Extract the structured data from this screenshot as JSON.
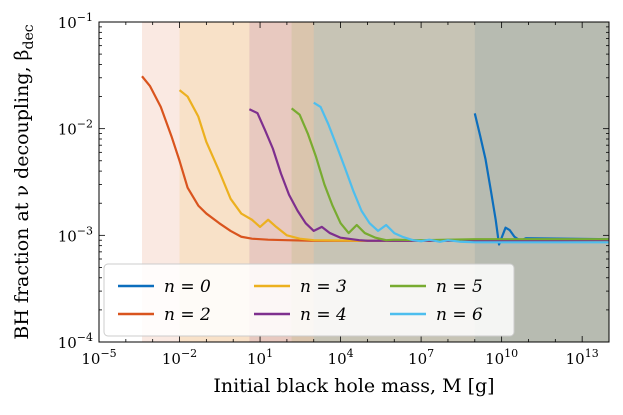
{
  "chart_data": {
    "type": "line",
    "title": "",
    "xlabel": "Initial black hole mass, M [g]",
    "ylabel": "BH fraction at ν decoupling, β_dec",
    "xscale": "log",
    "yscale": "log",
    "xlim": [
      1e-05,
      100000000000000.0
    ],
    "ylim": [
      0.0001,
      0.1
    ],
    "x_ticks": [
      {
        "value": 1e-05,
        "base": "10",
        "exp": "−5"
      },
      {
        "value": 0.01,
        "base": "10",
        "exp": "−2"
      },
      {
        "value": 10.0,
        "base": "10",
        "exp": "1"
      },
      {
        "value": 10000.0,
        "base": "10",
        "exp": "4"
      },
      {
        "value": 10000000.0,
        "base": "10",
        "exp": "7"
      },
      {
        "value": 10000000000.0,
        "base": "10",
        "exp": "10"
      },
      {
        "value": 10000000000000.0,
        "base": "10",
        "exp": "13"
      }
    ],
    "y_ticks": [
      {
        "value": 0.0001,
        "base": "10",
        "exp": "−4"
      },
      {
        "value": 0.001,
        "base": "10",
        "exp": "−3"
      },
      {
        "value": 0.01,
        "base": "10",
        "exp": "−2"
      },
      {
        "value": 0.1,
        "base": "10",
        "exp": "−1"
      }
    ],
    "legend_position": "lower-left",
    "series": [
      {
        "name": "n = 0",
        "color": "#0c6ebd",
        "shade_from_x": 1000000000.0,
        "points": [
          [
            1000000000.0,
            0.0139
          ],
          [
            1600000000.0,
            0.0085
          ],
          [
            2500000000.0,
            0.0052
          ],
          [
            4000000000.0,
            0.0026
          ],
          [
            6000000000.0,
            0.0014
          ],
          [
            8000000000.0,
            0.00082
          ],
          [
            10000000000.0,
            0.00095
          ],
          [
            14000000000.0,
            0.00118
          ],
          [
            20000000000.0,
            0.00112
          ],
          [
            30000000000.0,
            0.00097
          ],
          [
            50000000000.0,
            0.00089
          ],
          [
            80000000000.0,
            0.00094
          ],
          [
            100000000000000.0,
            0.00092
          ]
        ]
      },
      {
        "name": "n = 2",
        "color": "#d9541e",
        "shade_from_x": 0.0004,
        "points": [
          [
            0.0004,
            0.031
          ],
          [
            0.0008,
            0.025
          ],
          [
            0.002,
            0.016
          ],
          [
            0.005,
            0.0085
          ],
          [
            0.01,
            0.005
          ],
          [
            0.02,
            0.0028
          ],
          [
            0.05,
            0.0019
          ],
          [
            0.1,
            0.0016
          ],
          [
            0.3,
            0.0013
          ],
          [
            0.8,
            0.0011
          ],
          [
            2,
            0.00097
          ],
          [
            5,
            0.00093
          ],
          [
            20,
            0.00091
          ],
          [
            100,
            0.0009
          ],
          [
            1000.0,
            0.00089
          ],
          [
            100000.0,
            0.00089
          ],
          [
            10000000.0,
            0.00089
          ],
          [
            1000000000.0,
            0.00089
          ],
          [
            100000000000000.0,
            0.00089
          ]
        ]
      },
      {
        "name": "n = 3",
        "color": "#ecb01f",
        "shade_from_x": 0.01,
        "points": [
          [
            0.01,
            0.023
          ],
          [
            0.02,
            0.02
          ],
          [
            0.05,
            0.013
          ],
          [
            0.1,
            0.0075
          ],
          [
            0.3,
            0.004
          ],
          [
            0.8,
            0.0022
          ],
          [
            2,
            0.0016
          ],
          [
            5,
            0.0014
          ],
          [
            10,
            0.0012
          ],
          [
            20,
            0.0014
          ],
          [
            40,
            0.0012
          ],
          [
            100,
            0.001
          ],
          [
            300,
            0.00093
          ],
          [
            1000.0,
            0.0009
          ],
          [
            100000.0,
            0.00089
          ],
          [
            10000000.0,
            0.00089
          ],
          [
            1000000000.0,
            0.00089
          ],
          [
            100000000000000.0,
            0.00089
          ]
        ]
      },
      {
        "name": "n = 4",
        "color": "#7e2f8e",
        "shade_from_x": 4,
        "points": [
          [
            4,
            0.0152
          ],
          [
            8,
            0.014
          ],
          [
            15,
            0.0098
          ],
          [
            30,
            0.0065
          ],
          [
            60,
            0.0038
          ],
          [
            120,
            0.0024
          ],
          [
            250,
            0.0017
          ],
          [
            500,
            0.0013
          ],
          [
            1000.0,
            0.0011
          ],
          [
            2000.0,
            0.0012
          ],
          [
            4000.0,
            0.00105
          ],
          [
            10000.0,
            0.00095
          ],
          [
            50000.0,
            0.0009
          ],
          [
            100000.0,
            0.00089
          ],
          [
            10000000.0,
            0.00089
          ],
          [
            1000000000.0,
            0.00089
          ],
          [
            100000000000000.0,
            0.0009
          ]
        ]
      },
      {
        "name": "n = 5",
        "color": "#78ab30",
        "shade_from_x": 150,
        "points": [
          [
            150,
            0.0155
          ],
          [
            300,
            0.0135
          ],
          [
            600,
            0.009
          ],
          [
            1200.0,
            0.0055
          ],
          [
            2500.0,
            0.003
          ],
          [
            5000.0,
            0.0019
          ],
          [
            10000.0,
            0.0013
          ],
          [
            20000.0,
            0.00105
          ],
          [
            40000.0,
            0.00125
          ],
          [
            80000.0,
            0.00105
          ],
          [
            200000.0,
            0.00095
          ],
          [
            500000.0,
            0.0009
          ],
          [
            1000000.0,
            0.00091
          ],
          [
            10000000.0,
            0.0009
          ],
          [
            1000000000.0,
            0.00092
          ],
          [
            100000000000000.0,
            0.00092
          ]
        ]
      },
      {
        "name": "n = 6",
        "color": "#4dbeee",
        "shade_from_x": 1000.0,
        "points": [
          [
            1000.0,
            0.0175
          ],
          [
            1800.0,
            0.016
          ],
          [
            3500.0,
            0.011
          ],
          [
            7000.0,
            0.007
          ],
          [
            15000.0,
            0.0042
          ],
          [
            30000.0,
            0.0026
          ],
          [
            60000.0,
            0.0017
          ],
          [
            120000.0,
            0.0013
          ],
          [
            250000.0,
            0.0011
          ],
          [
            500000.0,
            0.00125
          ],
          [
            1000000.0,
            0.00105
          ],
          [
            2000000.0,
            0.00097
          ],
          [
            5000000.0,
            0.0009
          ],
          [
            10000000.0,
            0.00088
          ],
          [
            20000000.0,
            0.00091
          ],
          [
            50000000.0,
            0.00087
          ],
          [
            100000000.0,
            0.0009
          ],
          [
            300000000.0,
            0.00087
          ],
          [
            1000000000.0,
            0.00086
          ],
          [
            100000000000000.0,
            0.00086
          ]
        ]
      }
    ]
  }
}
